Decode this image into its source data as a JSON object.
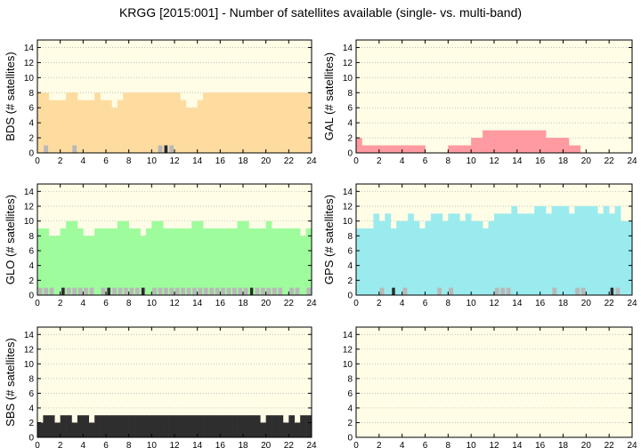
{
  "title": "KRGG [2015:001] - Number of satellites available (single- vs. multi-band)",
  "colors": {
    "background": "#fffde6",
    "grid": "#b0b0b0",
    "BDS": "#fedc9f",
    "GAL": "#ff9aa0",
    "GLO": "#9efc9c",
    "GPS": "#9aebee",
    "SBS": "#2e2e2e",
    "gray_band": "#b8b8b8",
    "dark_band": "#2a2a2a"
  },
  "chart_data": [
    {
      "type": "bar",
      "ylabel": "BDS (# satellites)",
      "series_color": "BDS",
      "xlim": [
        0,
        24
      ],
      "ylim": [
        0,
        15
      ],
      "xticks": [
        "0",
        "2",
        "4",
        "6",
        "8",
        "10",
        "12",
        "14",
        "16",
        "18",
        "20",
        "22",
        "24"
      ],
      "yticks": [
        "0",
        "2",
        "4",
        "6",
        "8",
        "10",
        "12",
        "14"
      ],
      "grid": true,
      "bin_hours": 0.5,
      "values": [
        8,
        8,
        7,
        7,
        7,
        8,
        8,
        7,
        7,
        7,
        8,
        7,
        7,
        6,
        7,
        8,
        8,
        8,
        8,
        8,
        8,
        8,
        8,
        8,
        8,
        7,
        6,
        6,
        7,
        8,
        8,
        8,
        8,
        8,
        8,
        8,
        8,
        8,
        8,
        8,
        8,
        8,
        8,
        8,
        8,
        8,
        8,
        8
      ],
      "single_band_gray": [
        0,
        1,
        0,
        0,
        0,
        0,
        1,
        0,
        0,
        0,
        0,
        0,
        0,
        0,
        0,
        0,
        0,
        0,
        0,
        0,
        0,
        1,
        1,
        1,
        0,
        0,
        0,
        0,
        0,
        0,
        0,
        0,
        0,
        0,
        0,
        0,
        0,
        0,
        0,
        0,
        0,
        0,
        0,
        0,
        0,
        0,
        0,
        0
      ],
      "single_band_dark": [
        0,
        0,
        0,
        0,
        0,
        0,
        0,
        0,
        0,
        0,
        0,
        0,
        0,
        0,
        0,
        0,
        0,
        0,
        0,
        0,
        0,
        0,
        1,
        0,
        0,
        0,
        0,
        0,
        0,
        0,
        0,
        0,
        0,
        0,
        0,
        0,
        0,
        0,
        0,
        0,
        0,
        0,
        0,
        0,
        0,
        0,
        0,
        0
      ]
    },
    {
      "type": "bar",
      "ylabel": "GAL (# satellites)",
      "series_color": "GAL",
      "xlim": [
        0,
        24
      ],
      "ylim": [
        0,
        15
      ],
      "xticks": [
        "0",
        "2",
        "4",
        "6",
        "8",
        "10",
        "12",
        "14",
        "16",
        "18",
        "20",
        "22",
        "24"
      ],
      "yticks": [
        "0",
        "2",
        "4",
        "6",
        "8",
        "10",
        "12",
        "14"
      ],
      "grid": true,
      "bin_hours": 0.5,
      "values": [
        2,
        1,
        1,
        1,
        1,
        1,
        1,
        1,
        1,
        1,
        1,
        1,
        0,
        0,
        0,
        0,
        1,
        1,
        1,
        1,
        2,
        2,
        3,
        3,
        3,
        3,
        3,
        3,
        3,
        3,
        3,
        3,
        3,
        2,
        2,
        2,
        2,
        1,
        1,
        0,
        0,
        0,
        0,
        0,
        0,
        0,
        0,
        0
      ],
      "single_band_gray": [],
      "single_band_dark": []
    },
    {
      "type": "bar",
      "ylabel": "GLO (# satellites)",
      "series_color": "GLO",
      "xlim": [
        0,
        24
      ],
      "ylim": [
        0,
        15
      ],
      "xticks": [
        "0",
        "2",
        "4",
        "6",
        "8",
        "10",
        "12",
        "14",
        "16",
        "18",
        "20",
        "22",
        "24"
      ],
      "yticks": [
        "0",
        "2",
        "4",
        "6",
        "8",
        "10",
        "12",
        "14"
      ],
      "grid": true,
      "bin_hours": 0.5,
      "values": [
        9,
        9,
        8,
        8,
        9,
        10,
        10,
        9,
        8,
        8,
        9,
        9,
        9,
        9,
        10,
        10,
        9,
        9,
        8,
        9,
        10,
        10,
        9,
        9,
        9,
        9,
        9,
        10,
        10,
        9,
        9,
        9,
        9,
        9,
        9,
        10,
        10,
        9,
        9,
        9,
        10,
        9,
        9,
        9,
        9,
        9,
        8,
        9
      ],
      "single_band_gray": [
        1,
        1,
        1,
        0,
        1,
        1,
        1,
        1,
        1,
        1,
        0,
        1,
        1,
        1,
        1,
        1,
        1,
        1,
        1,
        0,
        1,
        1,
        1,
        1,
        1,
        1,
        1,
        1,
        1,
        1,
        1,
        1,
        1,
        1,
        1,
        1,
        1,
        0,
        1,
        1,
        1,
        1,
        1,
        0,
        1,
        1,
        0,
        1
      ],
      "single_band_dark": [
        0,
        0,
        0,
        0,
        1,
        0,
        0,
        0,
        0,
        0,
        0,
        0,
        1,
        0,
        0,
        0,
        0,
        0,
        1,
        0,
        0,
        0,
        0,
        0,
        0,
        0,
        0,
        0,
        0,
        0,
        0,
        0,
        0,
        0,
        0,
        0,
        0,
        1,
        0,
        0,
        0,
        0,
        0,
        0,
        0,
        0,
        0,
        0
      ]
    },
    {
      "type": "bar",
      "ylabel": "GPS (# satellites)",
      "series_color": "GPS",
      "xlim": [
        0,
        24
      ],
      "ylim": [
        0,
        15
      ],
      "xticks": [
        "0",
        "2",
        "4",
        "6",
        "8",
        "10",
        "12",
        "14",
        "16",
        "18",
        "20",
        "22",
        "24"
      ],
      "yticks": [
        "0",
        "2",
        "4",
        "6",
        "8",
        "10",
        "12",
        "14"
      ],
      "grid": true,
      "bin_hours": 0.5,
      "values": [
        9,
        9,
        9,
        11,
        10,
        11,
        9,
        10,
        10,
        11,
        10,
        9,
        10,
        11,
        11,
        10,
        11,
        11,
        10,
        11,
        10,
        10,
        9,
        10,
        11,
        11,
        11,
        12,
        11,
        11,
        11,
        12,
        12,
        11,
        12,
        12,
        12,
        11,
        12,
        12,
        12,
        12,
        11,
        12,
        11,
        12,
        10,
        10
      ],
      "single_band_gray": [
        0,
        0,
        0,
        0,
        1,
        0,
        0,
        0,
        1,
        0,
        0,
        0,
        0,
        0,
        1,
        0,
        1,
        0,
        0,
        0,
        0,
        0,
        0,
        0,
        1,
        1,
        1,
        0,
        0,
        0,
        0,
        0,
        0,
        0,
        1,
        0,
        0,
        0,
        1,
        1,
        0,
        0,
        0,
        0,
        0,
        1,
        0,
        0
      ],
      "single_band_dark": [
        0,
        0,
        0,
        0,
        0,
        0,
        1,
        0,
        0,
        0,
        0,
        0,
        0,
        0,
        0,
        0,
        0,
        0,
        0,
        0,
        0,
        0,
        0,
        0,
        0,
        0,
        0,
        0,
        0,
        0,
        0,
        0,
        0,
        0,
        0,
        0,
        0,
        0,
        0,
        0,
        0,
        0,
        0,
        0,
        1,
        0,
        0,
        0
      ]
    },
    {
      "type": "bar",
      "ylabel": "SBS (# satellites)",
      "series_color": "SBS",
      "xlim": [
        0,
        24
      ],
      "ylim": [
        0,
        15
      ],
      "xticks": [
        "0",
        "2",
        "4",
        "6",
        "8",
        "10",
        "12",
        "14",
        "16",
        "18",
        "20",
        "22",
        "24"
      ],
      "yticks": [
        "0",
        "2",
        "4",
        "6",
        "8",
        "10",
        "12",
        "14"
      ],
      "grid": true,
      "bin_hours": 0.5,
      "values": [
        2,
        3,
        3,
        2,
        3,
        3,
        2,
        3,
        3,
        2,
        3,
        3,
        3,
        3,
        3,
        3,
        3,
        3,
        3,
        3,
        3,
        3,
        3,
        3,
        3,
        3,
        3,
        3,
        3,
        3,
        3,
        3,
        3,
        3,
        3,
        3,
        3,
        3,
        3,
        2,
        3,
        3,
        3,
        2,
        3,
        2,
        3,
        3
      ],
      "single_band_gray": [],
      "single_band_dark": []
    },
    {
      "type": "bar",
      "ylabel": "",
      "series_color": "",
      "xlim": [
        0,
        24
      ],
      "ylim": [
        0,
        15
      ],
      "xticks": [
        "0",
        "2",
        "4",
        "6",
        "8",
        "10",
        "12",
        "14",
        "16",
        "18",
        "20",
        "22",
        "24"
      ],
      "yticks": [
        "0",
        "2",
        "4",
        "6",
        "8",
        "10",
        "12",
        "14"
      ],
      "grid": true,
      "bin_hours": 0.5,
      "values": [],
      "single_band_gray": [],
      "single_band_dark": []
    }
  ]
}
